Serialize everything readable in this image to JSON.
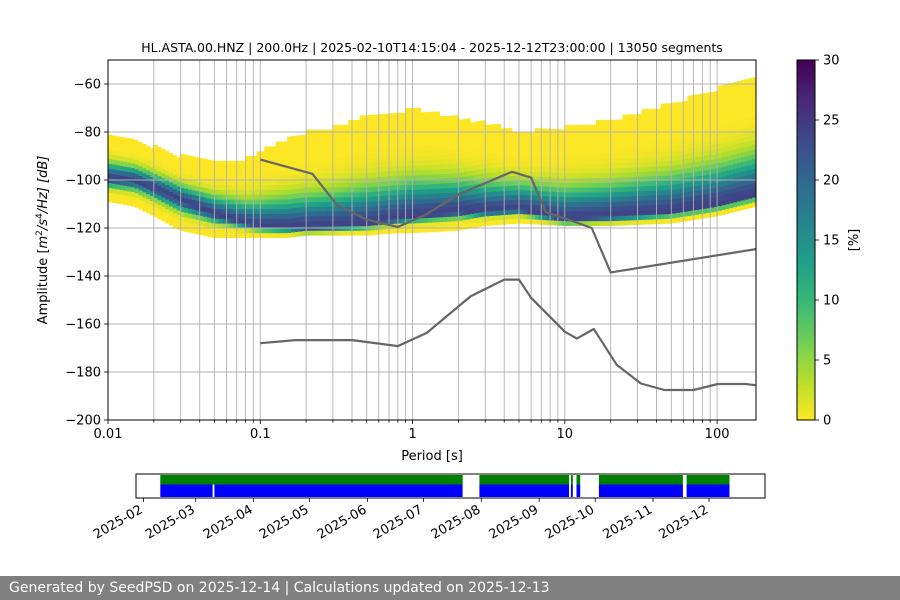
{
  "chart_data": [
    {
      "type": "heatmap",
      "title": "HL.ASTA.00.HNZ | 200.0Hz | 2025-02-10T14:15:04 - 2025-12-12T23:00:00 | 13050 segments",
      "xlabel": "Period [s]",
      "ylabel_parts": [
        "Amplitude [",
        "m",
        "2",
        "/s",
        "4",
        "/Hz] [dB]"
      ],
      "x_scale": "log",
      "xlim": [
        0.01,
        180
      ],
      "ylim": [
        -200,
        -50
      ],
      "x_ticks": [
        {
          "value": 0.01,
          "label": "0.01"
        },
        {
          "value": 0.1,
          "label": "0.1"
        },
        {
          "value": 1,
          "label": "1"
        },
        {
          "value": 10,
          "label": "10"
        },
        {
          "value": 100,
          "label": "100"
        }
      ],
      "y_ticks": [
        {
          "value": -60,
          "label": "−60"
        },
        {
          "value": -80,
          "label": "−80"
        },
        {
          "value": -100,
          "label": "−100"
        },
        {
          "value": -120,
          "label": "−120"
        },
        {
          "value": -140,
          "label": "−140"
        },
        {
          "value": -160,
          "label": "−160"
        },
        {
          "value": -180,
          "label": "−180"
        },
        {
          "value": -200,
          "label": "−200"
        }
      ],
      "grid": true,
      "colormap": "viridis_r",
      "colorbar": {
        "label": "[%]",
        "range": [
          0,
          30
        ],
        "ticks": [
          {
            "value": 0,
            "label": "0"
          },
          {
            "value": 5,
            "label": "5"
          },
          {
            "value": 10,
            "label": "10"
          },
          {
            "value": 15,
            "label": "15"
          },
          {
            "value": 20,
            "label": "20"
          },
          {
            "value": 25,
            "label": "25"
          },
          {
            "value": 30,
            "label": "30"
          }
        ]
      },
      "psd_mode": {
        "x": [
          0.01,
          0.015,
          0.02,
          0.03,
          0.05,
          0.08,
          0.1,
          0.15,
          0.2,
          0.3,
          0.5,
          0.8,
          1,
          2,
          3,
          5,
          10,
          20,
          50,
          100,
          180
        ],
        "y": [
          -99,
          -100,
          -103,
          -108,
          -114,
          -118,
          -119,
          -119.5,
          -119.5,
          -119,
          -118,
          -116,
          -115,
          -113,
          -113,
          -112,
          -116,
          -115,
          -113,
          -110,
          -106
        ]
      },
      "psd_upper_edge": {
        "x": [
          0.01,
          0.015,
          0.02,
          0.03,
          0.05,
          0.08,
          0.1,
          0.15,
          0.2,
          0.3,
          0.5,
          0.8,
          1,
          2,
          3,
          5,
          10,
          20,
          50,
          100,
          180
        ],
        "y": [
          -80,
          -83,
          -86,
          -90,
          -92,
          -91,
          -88,
          -83,
          -80,
          -78,
          -73,
          -72,
          -70,
          -74,
          -76,
          -80,
          -78,
          -75,
          -68,
          -62,
          -56
        ]
      },
      "psd_lower_edge": {
        "x": [
          0.01,
          0.015,
          0.02,
          0.03,
          0.05,
          0.08,
          0.1,
          0.15,
          0.2,
          0.3,
          0.5,
          0.8,
          1,
          2,
          3,
          5,
          10,
          20,
          50,
          100,
          180
        ],
        "y": [
          -108,
          -110,
          -114,
          -120,
          -123,
          -123,
          -123,
          -123,
          -122,
          -122,
          -122,
          -121,
          -121,
          -120,
          -118,
          -117,
          -118,
          -118,
          -117,
          -114,
          -110
        ]
      },
      "series": [
        {
          "name": "",
          "x": [
            0.1,
            0.22,
            0.32,
            0.5,
            0.8,
            1.2,
            2.0,
            4.5,
            6.0,
            7.5,
            10,
            15,
            20,
            180
          ],
          "y": [
            -91.5,
            -97.4,
            -110.5,
            -116.5,
            -119.6,
            -114.7,
            -106,
            -96.6,
            -99,
            -113.4,
            -116,
            -120,
            -138.5,
            -128.8
          ]
        },
        {
          "name": "",
          "x": [
            0.1,
            0.17,
            0.4,
            0.8,
            1.24,
            2.4,
            4.0,
            5.0,
            6.0,
            10,
            12,
            15.5,
            21.9,
            31.6,
            45,
            70,
            101,
            154,
            178
          ],
          "y": [
            -168,
            -166.7,
            -166.7,
            -169.2,
            -163.7,
            -148.5,
            -141.5,
            -141.5,
            -149.1,
            -163.2,
            -166.1,
            -162.1,
            -177,
            -184.8,
            -187.5,
            -187.5,
            -185,
            -185,
            -185.5
          ]
        }
      ]
    },
    {
      "type": "timeline",
      "x_ticks": [
        "2025-02",
        "2025-03",
        "2025-04",
        "2025-05",
        "2025-06",
        "2025-07",
        "2025-08",
        "2025-09",
        "2025-10",
        "2025-11",
        "2025-12"
      ],
      "xlim": [
        "2025-01-28",
        "2025-12-31"
      ],
      "rows": [
        {
          "name": "",
          "color": "#008000",
          "intervals": [
            [
              "2025-02-10",
              "2025-07-22"
            ],
            [
              "2025-07-31",
              "2025-09-17"
            ],
            [
              "2025-09-18",
              "2025-09-19"
            ],
            [
              "2025-09-21",
              "2025-09-23"
            ],
            [
              "2025-10-03",
              "2025-11-17"
            ],
            [
              "2025-11-19",
              "2025-12-12"
            ]
          ]
        },
        {
          "name": "",
          "color": "#0000ff",
          "intervals": [
            [
              "2025-02-10",
              "2025-03-10"
            ],
            [
              "2025-03-11",
              "2025-07-22"
            ],
            [
              "2025-07-31",
              "2025-09-17"
            ],
            [
              "2025-09-18",
              "2025-09-19"
            ],
            [
              "2025-09-21",
              "2025-09-23"
            ],
            [
              "2025-10-03",
              "2025-11-17"
            ],
            [
              "2025-11-19",
              "2025-12-12"
            ]
          ]
        }
      ]
    }
  ],
  "footer": {
    "text": "Generated by SeedPSD on 2025-12-14 | Calculations updated on 2025-12-13"
  }
}
